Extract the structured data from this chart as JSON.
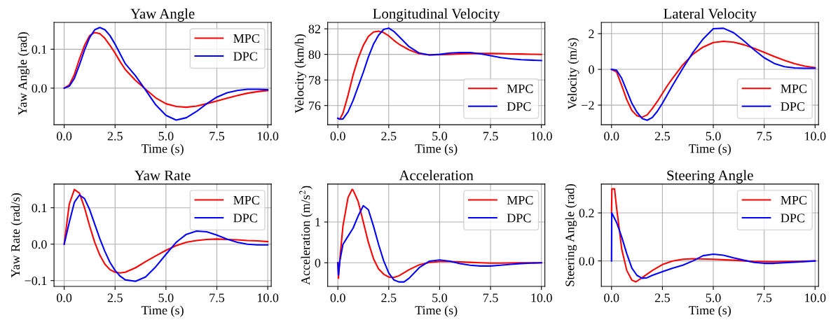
{
  "chart_data": [
    {
      "type": "line",
      "title": "Yaw Angle",
      "xlabel": "Time (s)",
      "ylabel": "Yaw Angle (rad)",
      "legend": "top right",
      "grid": true,
      "xlim": [
        -0.5,
        10.17
      ],
      "ylim": [
        -0.094,
        0.169
      ],
      "xticks": [
        {
          "value": 0,
          "label": "0.0"
        },
        {
          "value": 2.5,
          "label": "2.5"
        },
        {
          "value": 5,
          "label": "5.0"
        },
        {
          "value": 7.5,
          "label": "7.5"
        },
        {
          "value": 10,
          "label": "10.0"
        }
      ],
      "yticks": [
        {
          "value": 0,
          "label": "0.0"
        },
        {
          "value": 0.1,
          "label": "0.1"
        }
      ],
      "x": [
        0,
        0.25,
        0.5,
        0.75,
        1,
        1.25,
        1.5,
        1.75,
        2,
        2.25,
        2.5,
        2.75,
        3,
        3.5,
        4,
        4.5,
        5,
        5.5,
        6,
        6.5,
        7,
        7.5,
        8,
        8.5,
        9,
        9.5,
        10
      ],
      "series": [
        {
          "name": "MPC",
          "color": "#ff0000",
          "values": [
            0,
            0.008,
            0.035,
            0.075,
            0.11,
            0.135,
            0.143,
            0.14,
            0.128,
            0.11,
            0.09,
            0.068,
            0.048,
            0.02,
            -0.003,
            -0.025,
            -0.04,
            -0.047,
            -0.049,
            -0.046,
            -0.04,
            -0.033,
            -0.026,
            -0.019,
            -0.013,
            -0.009,
            -0.006
          ]
        },
        {
          "name": "DPC",
          "color": "#0000ff",
          "values": [
            0,
            0.005,
            0.025,
            0.06,
            0.098,
            0.13,
            0.15,
            0.156,
            0.15,
            0.135,
            0.113,
            0.088,
            0.063,
            0.032,
            -0.005,
            -0.043,
            -0.07,
            -0.082,
            -0.076,
            -0.06,
            -0.04,
            -0.023,
            -0.012,
            -0.006,
            -0.003,
            -0.003,
            -0.004
          ]
        }
      ]
    },
    {
      "type": "line",
      "title": "Longitudinal Velocity",
      "xlabel": "Time (s)",
      "ylabel": "Velocity (km/h)",
      "legend": "bottom right",
      "grid": true,
      "xlim": [
        -0.5,
        10.17
      ],
      "ylim": [
        74.5,
        82.5
      ],
      "xticks": [
        {
          "value": 0,
          "label": "0.0"
        },
        {
          "value": 2.5,
          "label": "2.5"
        },
        {
          "value": 5,
          "label": "5.0"
        },
        {
          "value": 7.5,
          "label": "7.5"
        },
        {
          "value": 10,
          "label": "10.0"
        }
      ],
      "yticks": [
        76,
        78,
        80,
        82
      ],
      "x": [
        0,
        0.1,
        0.25,
        0.5,
        0.75,
        1,
        1.25,
        1.5,
        1.75,
        2,
        2.25,
        2.5,
        2.75,
        3,
        3.5,
        4,
        4.5,
        5,
        5.5,
        6,
        6.5,
        7,
        7.5,
        8,
        8.5,
        9,
        9.5,
        10
      ],
      "series": [
        {
          "name": "MPC",
          "color": "#ff0000",
          "x": [
            0,
            0.1,
            0.25,
            0.5,
            0.75,
            1,
            1.25,
            1.5,
            1.75,
            2,
            2.25,
            2.5,
            2.75,
            3,
            3.5,
            4,
            4.5,
            5.5,
            6,
            6.5,
            7,
            7.5,
            8,
            8.5,
            9,
            9.5,
            10
          ],
          "values": [
            75,
            74.95,
            75.4,
            76.8,
            78.4,
            79.7,
            80.7,
            81.4,
            81.75,
            81.82,
            81.7,
            81.45,
            81.1,
            80.8,
            80.35,
            80.05,
            79.95,
            80.0,
            80.04,
            80.07,
            80.08,
            80.07,
            80.06,
            80.04,
            80.03,
            80.01,
            80.0
          ]
        },
        {
          "name": "DPC",
          "color": "#0000ff",
          "values": [
            75,
            74.93,
            74.95,
            75.5,
            76.4,
            77.5,
            78.6,
            79.8,
            80.8,
            81.5,
            81.95,
            82.05,
            81.8,
            81.4,
            80.6,
            80.1,
            79.95,
            80.0,
            80.1,
            80.15,
            80.15,
            80.05,
            79.9,
            79.75,
            79.65,
            79.58,
            79.55,
            79.52
          ]
        }
      ]
    },
    {
      "type": "line",
      "title": "Lateral Velocity",
      "xlabel": "Time (s)",
      "ylabel": "Velocity (m/s)",
      "legend": "bottom right",
      "grid": true,
      "xlim": [
        -0.5,
        10.17
      ],
      "ylim": [
        -3.1,
        2.63
      ],
      "xticks": [
        {
          "value": 0,
          "label": "0.0"
        },
        {
          "value": 2.5,
          "label": "2.5"
        },
        {
          "value": 5,
          "label": "5.0"
        },
        {
          "value": 7.5,
          "label": "7.5"
        },
        {
          "value": 10,
          "label": "10.0"
        }
      ],
      "yticks": [
        {
          "value": -2,
          "label": "−2"
        },
        0,
        2
      ],
      "x": [
        0,
        0.25,
        0.5,
        0.75,
        1,
        1.25,
        1.5,
        1.75,
        2,
        2.25,
        2.5,
        2.75,
        3,
        3.5,
        4,
        4.5,
        5,
        5.5,
        6,
        6.5,
        7,
        7.5,
        8,
        8.5,
        9,
        9.5,
        10
      ],
      "series": [
        {
          "name": "MPC",
          "color": "#ff0000",
          "values": [
            0,
            -0.15,
            -0.9,
            -1.7,
            -2.3,
            -2.6,
            -2.68,
            -2.55,
            -2.2,
            -1.8,
            -1.35,
            -0.9,
            -0.5,
            0.25,
            0.85,
            1.25,
            1.5,
            1.57,
            1.52,
            1.38,
            1.18,
            0.95,
            0.72,
            0.5,
            0.32,
            0.18,
            0.1
          ]
        },
        {
          "name": "DPC",
          "color": "#0000ff",
          "values": [
            0,
            -0.05,
            -0.5,
            -1.2,
            -1.9,
            -2.4,
            -2.75,
            -2.85,
            -2.7,
            -2.35,
            -1.9,
            -1.4,
            -0.9,
            0.05,
            0.95,
            1.7,
            2.28,
            2.3,
            2.05,
            1.6,
            1.1,
            0.65,
            0.33,
            0.15,
            0.08,
            0.06,
            0.06
          ]
        }
      ]
    },
    {
      "type": "line",
      "title": "Yaw Rate",
      "xlabel": "Time (s)",
      "ylabel": "Yaw Rate (rad/s)",
      "legend": "top right",
      "grid": true,
      "xlim": [
        -0.5,
        10.17
      ],
      "ylim": [
        -0.116,
        0.165
      ],
      "xticks": [
        {
          "value": 0,
          "label": "0.0"
        },
        {
          "value": 2.5,
          "label": "2.5"
        },
        {
          "value": 5,
          "label": "5.0"
        },
        {
          "value": 7.5,
          "label": "7.5"
        },
        {
          "value": 10,
          "label": "10.0"
        }
      ],
      "yticks": [
        {
          "value": -0.1,
          "label": "−0.1"
        },
        {
          "value": 0,
          "label": "0.0"
        },
        {
          "value": 0.1,
          "label": "0.1"
        }
      ],
      "x": [
        0,
        0.25,
        0.5,
        0.75,
        1,
        1.25,
        1.5,
        1.75,
        2,
        2.25,
        2.5,
        2.75,
        3,
        3.5,
        4,
        4.5,
        5,
        5.5,
        6,
        6.5,
        7,
        7.5,
        8,
        8.5,
        9,
        9.5,
        10
      ],
      "series": [
        {
          "name": "MPC",
          "color": "#ff0000",
          "values": [
            0,
            0.11,
            0.15,
            0.14,
            0.1,
            0.05,
            0.005,
            -0.03,
            -0.055,
            -0.07,
            -0.077,
            -0.079,
            -0.077,
            -0.065,
            -0.048,
            -0.032,
            -0.017,
            -0.004,
            0.005,
            0.01,
            0.013,
            0.014,
            0.013,
            0.012,
            0.01,
            0.009,
            0.007
          ]
        },
        {
          "name": "DPC",
          "color": "#0000ff",
          "values": [
            0,
            0.06,
            0.115,
            0.135,
            0.125,
            0.095,
            0.055,
            0.015,
            -0.02,
            -0.05,
            -0.072,
            -0.088,
            -0.098,
            -0.102,
            -0.09,
            -0.062,
            -0.028,
            0.005,
            0.027,
            0.036,
            0.034,
            0.025,
            0.014,
            0.005,
            0.0,
            -0.002,
            -0.002
          ]
        }
      ]
    },
    {
      "type": "line",
      "title": "Acceleration",
      "xlabel": "Time (s)",
      "ylabel": "Acceleration (m/s$^{2}$)",
      "legend": "top right",
      "grid": true,
      "xlim": [
        -0.5,
        10.17
      ],
      "ylim": [
        -0.58,
        1.93
      ],
      "xticks": [
        {
          "value": 0,
          "label": "0.0"
        },
        {
          "value": 2.5,
          "label": "2.5"
        },
        {
          "value": 5,
          "label": "5.0"
        },
        {
          "value": 7.5,
          "label": "7.5"
        },
        {
          "value": 10,
          "label": "10.0"
        }
      ],
      "yticks": [
        0,
        1
      ],
      "series": [
        {
          "name": "MPC",
          "color": "#ff0000",
          "x": [
            0,
            0.03,
            0.1,
            0.25,
            0.5,
            0.7,
            0.75,
            1,
            1.25,
            1.5,
            1.75,
            2,
            2.25,
            2.5,
            2.75,
            3,
            3.5,
            4,
            4.5,
            5,
            5.5,
            6,
            6.5,
            7,
            7.5,
            8,
            9,
            10
          ],
          "values": [
            0,
            -0.38,
            0.1,
            0.9,
            1.6,
            1.8,
            1.78,
            1.5,
            1.0,
            0.5,
            0.1,
            -0.15,
            -0.28,
            -0.35,
            -0.36,
            -0.32,
            -0.17,
            -0.05,
            0.01,
            0.03,
            0.03,
            0.02,
            0.01,
            0.0,
            -0.01,
            -0.01,
            0.0,
            0.0
          ]
        },
        {
          "name": "DPC",
          "color": "#0000ff",
          "x": [
            0,
            0.03,
            0.1,
            0.25,
            0.5,
            0.75,
            1,
            1.25,
            1.5,
            1.75,
            2,
            2.25,
            2.5,
            2.75,
            3,
            3.25,
            3.5,
            4,
            4.5,
            5,
            5.5,
            6,
            6.5,
            7,
            7.5,
            8,
            8.5,
            9,
            9.5,
            10
          ],
          "values": [
            0,
            -0.3,
            0.05,
            0.45,
            0.65,
            0.85,
            1.15,
            1.4,
            1.3,
            0.9,
            0.45,
            0.05,
            -0.25,
            -0.42,
            -0.47,
            -0.47,
            -0.38,
            -0.12,
            0.04,
            0.07,
            0.04,
            -0.02,
            -0.06,
            -0.08,
            -0.08,
            -0.06,
            -0.04,
            -0.02,
            -0.01,
            0.0
          ]
        }
      ]
    },
    {
      "type": "line",
      "title": "Steering Angle",
      "xlabel": "Time (s)",
      "ylabel": "Steering Angle (rad)",
      "legend": "top right",
      "grid": true,
      "xlim": [
        -0.5,
        10.17
      ],
      "ylim": [
        -0.106,
        0.32
      ],
      "xticks": [
        {
          "value": 0,
          "label": "0.0"
        },
        {
          "value": 2.5,
          "label": "2.5"
        },
        {
          "value": 5,
          "label": "5.0"
        },
        {
          "value": 7.5,
          "label": "7.5"
        },
        {
          "value": 10,
          "label": "10.0"
        }
      ],
      "yticks": [
        {
          "value": 0,
          "label": "0.0"
        },
        {
          "value": 0.2,
          "label": "0.2"
        }
      ],
      "series": [
        {
          "name": "MPC",
          "color": "#ff0000",
          "x": [
            0,
            0.02,
            0.15,
            0.25,
            0.4,
            0.5,
            0.75,
            1,
            1.2,
            1.5,
            2,
            2.5,
            3,
            3.5,
            4,
            5,
            6,
            7,
            8,
            9,
            10
          ],
          "values": [
            0.2,
            0.3,
            0.3,
            0.22,
            0.12,
            0.05,
            -0.04,
            -0.08,
            -0.087,
            -0.07,
            -0.04,
            -0.015,
            0.0,
            0.007,
            0.009,
            0.007,
            0.003,
            -0.002,
            -0.003,
            -0.002,
            0.0
          ]
        },
        {
          "name": "DPC",
          "color": "#0000ff",
          "x": [
            0,
            0.01,
            0.25,
            0.5,
            0.75,
            1,
            1.25,
            1.5,
            1.75,
            2,
            2.5,
            3,
            3.5,
            4,
            4.5,
            5,
            5.5,
            6,
            6.5,
            7,
            7.5,
            8,
            9,
            10
          ],
          "values": [
            0,
            0.2,
            0.16,
            0.1,
            0.03,
            -0.03,
            -0.06,
            -0.072,
            -0.07,
            -0.06,
            -0.045,
            -0.03,
            -0.018,
            0.0,
            0.022,
            0.028,
            0.024,
            0.013,
            0.003,
            -0.006,
            -0.01,
            -0.01,
            -0.005,
            0.0
          ]
        }
      ]
    }
  ]
}
